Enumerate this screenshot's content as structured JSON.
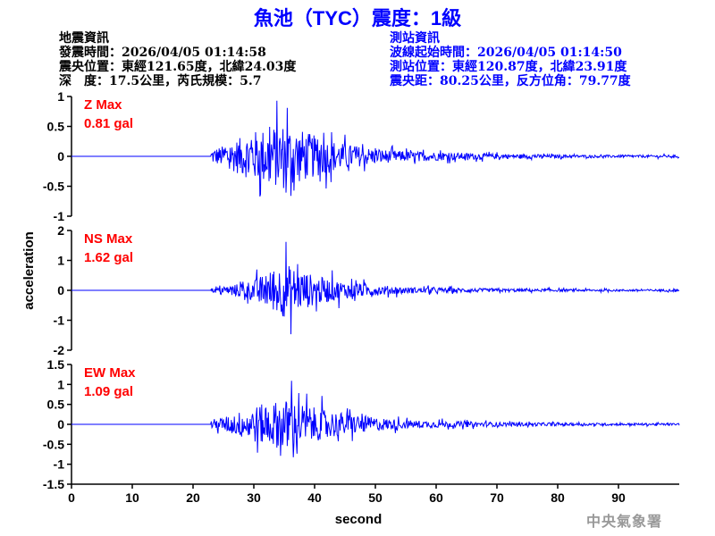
{
  "title": "魚池（TYC）震度：1級",
  "earthquake_info": {
    "heading": "地震資訊",
    "origin_time": "發震時間：2026/04/05 01:14:58",
    "epicenter": "震央位置：東經121.65度，北緯24.03度",
    "depth_magnitude": "深　度：17.5公里，芮氏規模：5.7"
  },
  "station_info": {
    "heading": "測站資訊",
    "start_time": "波線起始時間：2026/04/05 01:14:50",
    "location": "測站位置：東經120.87度，北緯23.91度",
    "distance": "震央距：80.25公里，反方位角：79.77度"
  },
  "watermark": "中央氣象署",
  "colors": {
    "trace": "#0000ff",
    "label": "#ff0000",
    "title": "#0000ff"
  },
  "chart_data": {
    "type": "line",
    "xlabel": "second",
    "ylabel": "acceleration",
    "xlim": [
      0,
      100
    ],
    "xticks": [
      0,
      10,
      20,
      30,
      40,
      50,
      60,
      70,
      80,
      90
    ],
    "grid": false,
    "onset_second": 23,
    "panels": [
      {
        "label": "Z Max",
        "max": "0.81 gal",
        "ylim": [
          -1,
          1
        ],
        "yticks": [
          -1,
          -0.5,
          0,
          0.5,
          1
        ],
        "yticklabels": [
          "-1",
          "-0.5",
          "0",
          "0.5",
          "1"
        ],
        "peak": 0.81,
        "peak_second": 35.5,
        "envelope_per_5s": [
          0,
          0,
          0,
          0,
          0.06,
          0.25,
          0.6,
          0.8,
          0.5,
          0.3,
          0.18,
          0.12,
          0.1,
          0.08,
          0.06,
          0.05,
          0.04,
          0.03,
          0.03,
          0.03
        ]
      },
      {
        "label": "NS Max",
        "max": "1.62 gal",
        "ylim": [
          -2,
          2
        ],
        "yticks": [
          -2,
          -1,
          0,
          1,
          2
        ],
        "yticklabels": [
          "-2",
          "-1",
          "0",
          "1",
          "2"
        ],
        "peak": 1.62,
        "peak_second": 35.3,
        "envelope_per_5s": [
          0,
          0,
          0,
          0,
          0.05,
          0.15,
          0.5,
          1.3,
          0.7,
          0.4,
          0.25,
          0.15,
          0.12,
          0.1,
          0.08,
          0.07,
          0.06,
          0.05,
          0.05,
          0.05
        ]
      },
      {
        "label": "EW Max",
        "max": "1.09 gal",
        "ylim": [
          -1.5,
          1.5
        ],
        "yticks": [
          -1.5,
          -1,
          -0.5,
          0,
          0.5,
          1,
          1.5
        ],
        "yticklabels": [
          "-1.5",
          "-1",
          "-0.5",
          "0",
          "0.5",
          "1",
          "1.5"
        ],
        "peak": 1.09,
        "peak_second": 36.2,
        "envelope_per_5s": [
          0,
          0,
          0,
          0,
          0.06,
          0.25,
          0.65,
          0.9,
          0.6,
          0.4,
          0.25,
          0.15,
          0.12,
          0.1,
          0.08,
          0.06,
          0.05,
          0.05,
          0.04,
          0.04
        ]
      }
    ]
  }
}
